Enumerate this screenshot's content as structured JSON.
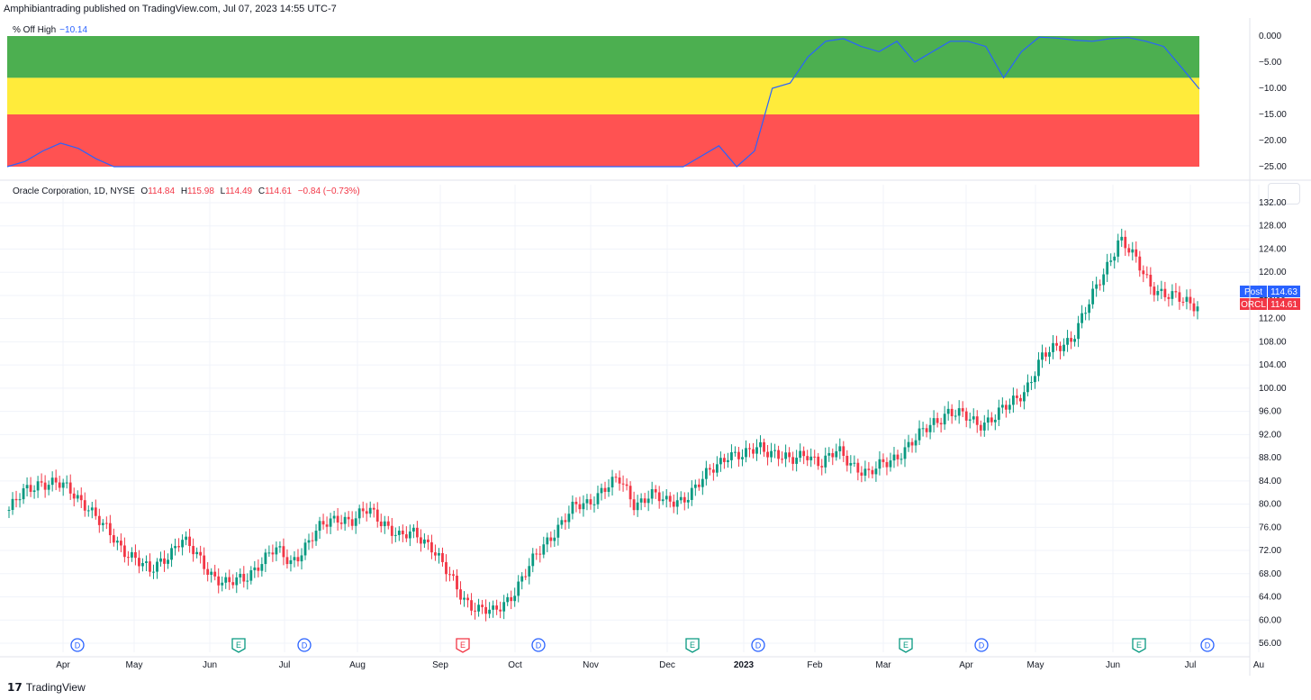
{
  "header": {
    "published": "Amphibiantrading published on TradingView.com, Jul 07, 2023 14:55 UTC-7"
  },
  "indicator": {
    "name": "% Off High",
    "value": "−10.14",
    "zones": [
      {
        "name": "green",
        "from": 0,
        "to": -8,
        "color": "#4caf50"
      },
      {
        "name": "yellow",
        "from": -8,
        "to": -15,
        "color": "#ffeb3b"
      },
      {
        "name": "red",
        "from": -15,
        "to": -25,
        "color": "#ff5252"
      }
    ],
    "line_color": "#2962ff"
  },
  "legend": {
    "symbol": "Oracle Corporation, 1D, NYSE",
    "o_label": "O",
    "o_value": "114.84",
    "h_label": "H",
    "h_value": "115.98",
    "l_label": "L",
    "l_value": "114.49",
    "c_label": "C",
    "c_value": "114.61",
    "change": "−0.84 (−0.73%)"
  },
  "badges": {
    "post_label": "Post",
    "post_value": "114.63",
    "post_color": "#2962ff",
    "sym_label": "ORCL",
    "sym_value": "114.61",
    "sym_color": "#f23645"
  },
  "brand": {
    "name": "TradingView"
  },
  "chart_data": [
    {
      "type": "line",
      "title": "% Off High",
      "ylim": [
        -25,
        0
      ],
      "yticks": [
        "0.000",
        "−5.00",
        "−10.00",
        "−15.00",
        "−20.00",
        "−25.00"
      ],
      "x": [
        0,
        5,
        10,
        15,
        20,
        25,
        30,
        35,
        40,
        45,
        50,
        55,
        60,
        65,
        70,
        75,
        80,
        85,
        90,
        95,
        100,
        105,
        110,
        115,
        120,
        125,
        130,
        135,
        140,
        145,
        150,
        155,
        160,
        165,
        170,
        175,
        180,
        185,
        190,
        195,
        200,
        205,
        210,
        215,
        220,
        225,
        230,
        235,
        240,
        245,
        250,
        255,
        260,
        265,
        270,
        275,
        280,
        285,
        290,
        295,
        300,
        305,
        310,
        315,
        320,
        325,
        330,
        335
      ],
      "values": [
        -25,
        -24,
        -22,
        -20.5,
        -21.5,
        -23.5,
        -25,
        -25,
        -25,
        -25,
        -25,
        -25,
        -25,
        -25,
        -25,
        -25,
        -25,
        -25,
        -25,
        -25,
        -25,
        -25,
        -25,
        -25,
        -25,
        -25,
        -25,
        -25,
        -25,
        -25,
        -25,
        -25,
        -25,
        -25,
        -25,
        -25,
        -25,
        -25,
        -25,
        -23,
        -21,
        -25,
        -22,
        -10,
        -9,
        -4,
        -1,
        -0.5,
        -2,
        -3,
        -1,
        -5,
        -3,
        -1,
        -1,
        -2,
        -8,
        -3,
        -0.2,
        -0.4,
        -0.8,
        -1,
        -0.5,
        -0.3,
        -1,
        -2,
        -6,
        -10.14
      ]
    },
    {
      "type": "candlestick",
      "title": "Oracle Corporation, 1D, NYSE",
      "ylim": [
        56,
        132
      ],
      "yticks": [
        "132.00",
        "128.00",
        "124.00",
        "120.00",
        "116.00",
        "112.00",
        "108.00",
        "104.00",
        "100.00",
        "96.00",
        "92.00",
        "88.00",
        "84.00",
        "80.00",
        "76.00",
        "72.00",
        "68.00",
        "64.00",
        "60.00",
        "56.00"
      ],
      "xticks": [
        "Apr",
        "May",
        "Jun",
        "Jul",
        "Aug",
        "Sep",
        "Oct",
        "Nov",
        "Dec",
        "2023",
        "Feb",
        "Mar",
        "Apr",
        "May",
        "Jun",
        "Jul",
        "Au"
      ],
      "close_path": [
        79,
        82,
        84,
        83.5,
        82,
        80,
        76,
        73,
        71,
        68,
        71,
        74,
        71,
        68,
        66,
        67,
        70,
        72,
        70,
        73,
        76,
        78,
        77,
        79,
        77,
        74,
        75,
        73,
        68,
        64,
        62,
        61,
        64,
        68,
        72,
        76,
        79,
        80,
        83,
        84,
        80,
        82,
        80,
        81,
        83,
        86,
        89,
        88,
        90,
        89,
        87,
        89,
        87,
        89,
        87,
        85,
        87,
        89,
        91,
        94,
        96,
        95,
        94,
        95,
        97,
        100,
        105,
        107,
        109,
        114,
        120,
        126,
        122,
        118,
        116,
        115,
        114.61
      ],
      "events": [
        {
          "type": "D",
          "label": "D"
        },
        {
          "type": "E",
          "label": "E"
        },
        {
          "type": "D",
          "label": "D"
        },
        {
          "type": "E-red",
          "label": "E"
        },
        {
          "type": "D",
          "label": "D"
        },
        {
          "type": "E",
          "label": "E"
        },
        {
          "type": "D",
          "label": "D"
        },
        {
          "type": "E",
          "label": "E"
        },
        {
          "type": "D",
          "label": "D"
        },
        {
          "type": "E",
          "label": "E"
        },
        {
          "type": "D",
          "label": "D"
        }
      ],
      "up_color": "#089981",
      "down_color": "#f23645"
    }
  ]
}
